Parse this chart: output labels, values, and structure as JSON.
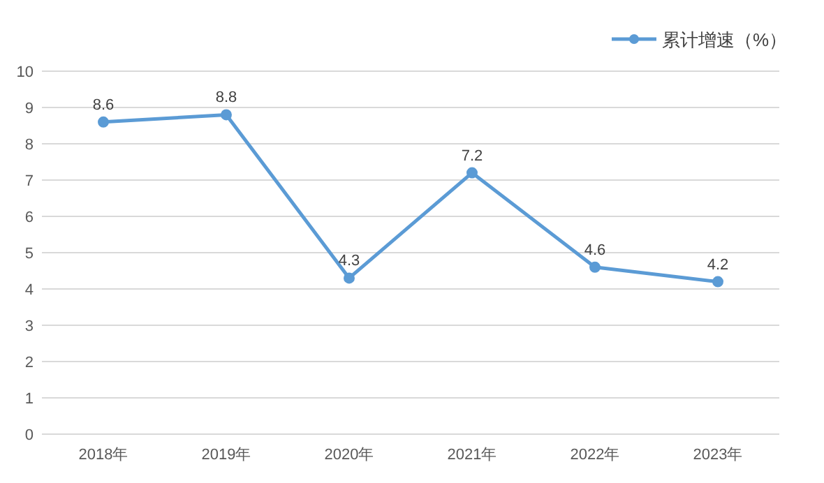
{
  "chart_data": {
    "type": "line",
    "categories": [
      "2018年",
      "2019年",
      "2020年",
      "2021年",
      "2022年",
      "2023年"
    ],
    "series": [
      {
        "name": "累计增速（%）",
        "color": "#5b9bd5",
        "values": [
          8.6,
          8.8,
          4.3,
          7.2,
          4.6,
          4.2
        ]
      }
    ],
    "ylim": [
      0,
      10
    ],
    "yticks": [
      0,
      1,
      2,
      3,
      4,
      5,
      6,
      7,
      8,
      9,
      10
    ],
    "grid": "y",
    "legend": "top right",
    "marker": "circle",
    "line_style": "solid",
    "data_labels": true
  }
}
